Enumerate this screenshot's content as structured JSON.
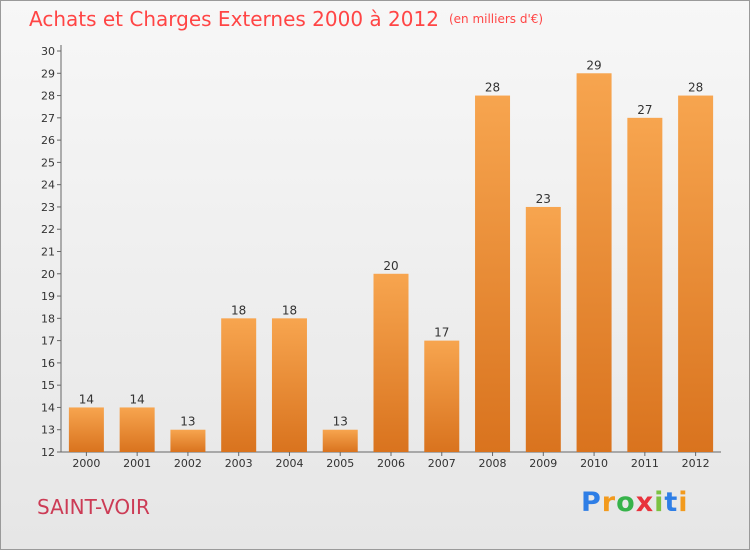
{
  "chart_data": {
    "type": "bar",
    "title": "Achats et Charges Externes 2000 à 2012",
    "subtitle": "(en milliers d'€)",
    "categories": [
      "2000",
      "2001",
      "2002",
      "2003",
      "2004",
      "2005",
      "2006",
      "2007",
      "2008",
      "2009",
      "2010",
      "2011",
      "2012"
    ],
    "values": [
      14,
      14,
      13,
      18,
      18,
      13,
      20,
      17,
      28,
      23,
      29,
      27,
      28
    ],
    "ylim": [
      12,
      30
    ],
    "yticks": [
      12,
      13,
      14,
      15,
      16,
      17,
      18,
      19,
      20,
      21,
      22,
      23,
      24,
      25,
      26,
      27,
      28,
      29,
      30
    ],
    "grid": false,
    "bar_color_top": "#f7a54f",
    "bar_color_bottom": "#d9731e",
    "title_color": "#ff4545"
  },
  "footer": {
    "city": "SAINT-VOIR",
    "city_color": "#cc3b55"
  },
  "logo": {
    "letters": [
      "P",
      "r",
      "o",
      "x",
      "i",
      "t",
      "i"
    ],
    "colors": [
      "#2e7ee6",
      "#f29a1d",
      "#36b34a",
      "#e8323c",
      "#7cc242",
      "#2e7ee6",
      "#f29a1d"
    ]
  }
}
